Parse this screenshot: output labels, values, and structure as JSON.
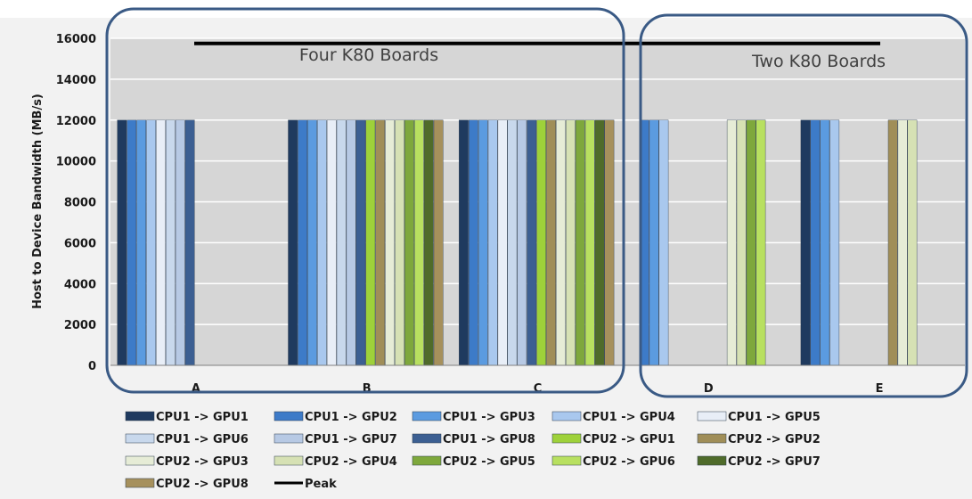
{
  "chart_data": {
    "type": "bar",
    "ylabel": "Host to Device  Bandwidth (MB/s)",
    "xlabel": "",
    "ylim": [
      0,
      16000
    ],
    "yticks": [
      0,
      2000,
      4000,
      6000,
      8000,
      10000,
      12000,
      14000,
      16000
    ],
    "grid": true,
    "legend_position": "bottom",
    "categories": [
      "A",
      "B",
      "C",
      "D",
      "E"
    ],
    "series": [
      {
        "name": "CPU1 -> GPU1",
        "color": "#1f3a5f",
        "values": [
          12000,
          12000,
          12000,
          null,
          12000
        ]
      },
      {
        "name": "CPU1 -> GPU2",
        "color": "#3d7bc8",
        "values": [
          12000,
          12000,
          12000,
          12000,
          12000
        ]
      },
      {
        "name": "CPU1 -> GPU3",
        "color": "#5b9be0",
        "values": [
          12000,
          12000,
          12000,
          12000,
          12000
        ]
      },
      {
        "name": "CPU1 -> GPU4",
        "color": "#a9c8ee",
        "values": [
          12000,
          12000,
          12000,
          12000,
          12000
        ]
      },
      {
        "name": "CPU1 -> GPU5",
        "color": "#e8eef7",
        "values": [
          12000,
          12000,
          12000,
          null,
          null
        ]
      },
      {
        "name": "CPU1 -> GPU6",
        "color": "#c8d8ec",
        "values": [
          12000,
          12000,
          12000,
          null,
          null
        ]
      },
      {
        "name": "CPU1 -> GPU7",
        "color": "#b7c9e4",
        "values": [
          12000,
          12000,
          12000,
          null,
          null
        ]
      },
      {
        "name": "CPU1 -> GPU8",
        "color": "#3c5f92",
        "values": [
          12000,
          12000,
          12000,
          null,
          null
        ]
      },
      {
        "name": "CPU2 -> GPU1",
        "color": "#9ed13a",
        "values": [
          null,
          12000,
          12000,
          null,
          null
        ]
      },
      {
        "name": "CPU2 -> GPU2",
        "color": "#a08e58",
        "values": [
          null,
          12000,
          12000,
          null,
          12000
        ]
      },
      {
        "name": "CPU2 -> GPU3",
        "color": "#e6ecd6",
        "values": [
          null,
          12000,
          12000,
          12000,
          12000
        ]
      },
      {
        "name": "CPU2 -> GPU4",
        "color": "#d6e1b4",
        "values": [
          null,
          12000,
          12000,
          12000,
          12000
        ]
      },
      {
        "name": "CPU2 -> GPU5",
        "color": "#7ea83c",
        "values": [
          null,
          12000,
          12000,
          12000,
          null
        ]
      },
      {
        "name": "CPU2 -> GPU6",
        "color": "#b8e060",
        "values": [
          null,
          12000,
          12000,
          12000,
          null
        ]
      },
      {
        "name": "CPU2 -> GPU7",
        "color": "#4f6b2a",
        "values": [
          null,
          12000,
          12000,
          null,
          null
        ]
      },
      {
        "name": "CPU2 -> GPU8",
        "color": "#a6905c",
        "values": [
          null,
          12000,
          12000,
          null,
          null
        ]
      }
    ],
    "peak": {
      "name": "Peak",
      "value": 15750,
      "color": "#000000"
    },
    "annotations": [
      {
        "text": "Four K80 Boards",
        "categories": [
          "A",
          "B",
          "C"
        ]
      },
      {
        "text": "Two K80 Boards",
        "categories": [
          "D",
          "E"
        ]
      }
    ]
  }
}
